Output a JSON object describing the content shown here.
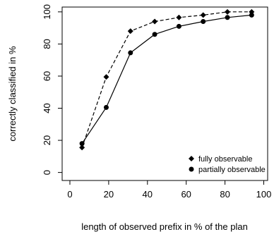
{
  "chart_data": {
    "type": "line",
    "title": "",
    "xlabel": "length of observed prefix in % of the plan",
    "ylabel": "correctly classified in %",
    "xlim": [
      -4,
      102
    ],
    "ylim": [
      -5,
      103
    ],
    "xticks": [
      0,
      20,
      40,
      60,
      80,
      100
    ],
    "yticks": [
      0,
      20,
      40,
      60,
      80,
      100
    ],
    "grid": false,
    "legend_position": "bottom-right",
    "x": [
      6.25,
      18.75,
      31.25,
      43.75,
      56.25,
      68.75,
      81.25,
      93.75
    ],
    "series": [
      {
        "name": "fully observable",
        "values": [
          15.5,
          59.5,
          88.0,
          94.0,
          96.5,
          98.0,
          100.0,
          100.0
        ],
        "line_style": "dashed",
        "marker": "diamond",
        "color": "#000000"
      },
      {
        "name": "partially observable",
        "values": [
          18.0,
          40.5,
          74.5,
          86.0,
          91.0,
          94.0,
          96.5,
          98.0
        ],
        "line_style": "solid",
        "marker": "circle",
        "color": "#000000"
      }
    ]
  }
}
